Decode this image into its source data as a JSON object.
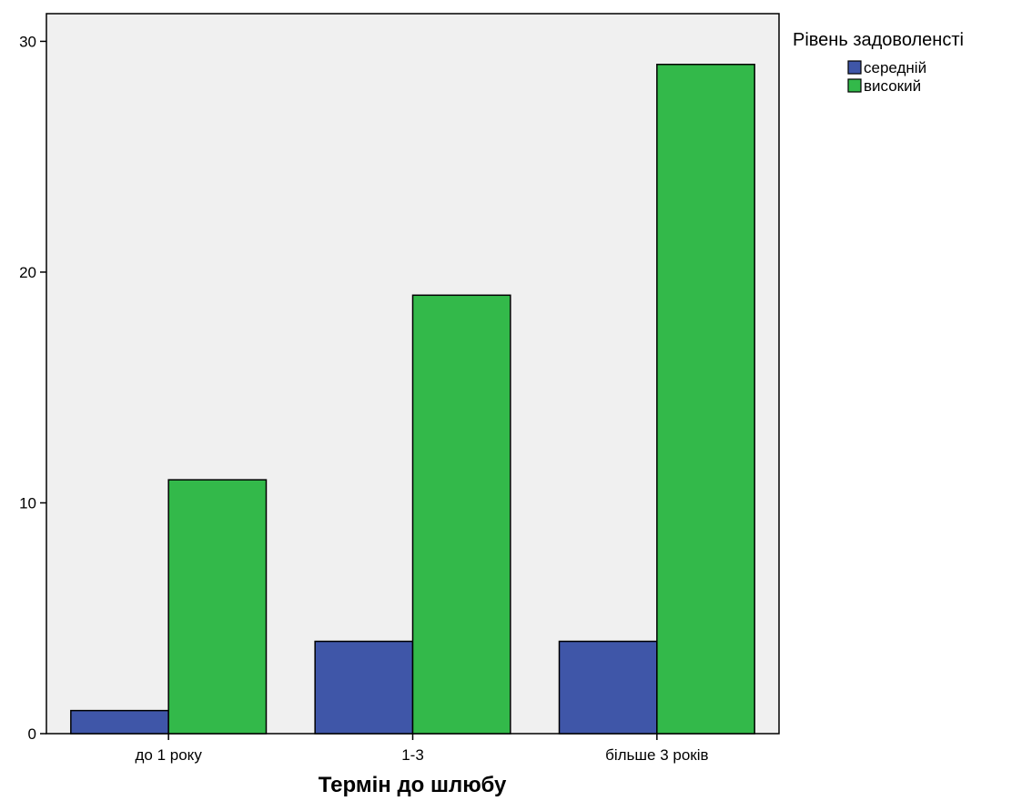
{
  "chart_data": {
    "type": "bar",
    "title": "",
    "xlabel": "Термін до шлюбу",
    "ylabel": "",
    "categories": [
      "до 1 року",
      "1-3",
      "бiльше 3 років"
    ],
    "series": [
      {
        "name": "середній",
        "values": [
          1,
          4,
          4
        ],
        "color": "#3f56a8"
      },
      {
        "name": "високий",
        "values": [
          11,
          19,
          29
        ],
        "color": "#33b94a"
      }
    ],
    "ylim": [
      0,
      31.2
    ],
    "yticks": [
      0,
      10,
      20,
      30
    ],
    "grid": false,
    "legend": {
      "title": "Рівень задоволенсті",
      "placement": "top-right"
    },
    "plot_background": "#f0f0f0"
  }
}
